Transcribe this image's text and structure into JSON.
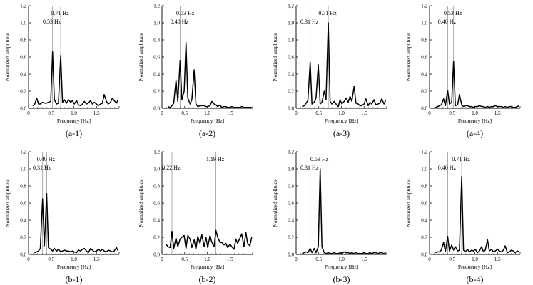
{
  "chart_data": [
    {
      "id": "a-1",
      "type": "line",
      "caption": "(a-1)",
      "xlabel": "Frequency [Hz]",
      "ylabel": "Normalized amplitude",
      "xlim": [
        0,
        2
      ],
      "ylim": [
        0,
        1.2
      ],
      "xticks": [
        "0",
        "0.5",
        "1.0",
        "1.5"
      ],
      "yticks": [
        "0.0",
        "0.2",
        "0.4",
        "0.6",
        "0.8",
        "1.0",
        "1.2"
      ],
      "peaks": [
        {
          "x": 0.53,
          "label": "0.53 Hz"
        },
        {
          "x": 0.71,
          "label": "0.71 Hz"
        }
      ],
      "x": [
        0.09,
        0.13,
        0.18,
        0.22,
        0.26,
        0.31,
        0.35,
        0.4,
        0.44,
        0.49,
        0.53,
        0.57,
        0.62,
        0.66,
        0.71,
        0.75,
        0.79,
        0.84,
        0.88,
        0.93,
        0.97,
        1.01,
        1.06,
        1.1,
        1.15,
        1.19,
        1.23,
        1.28,
        1.32,
        1.37,
        1.41,
        1.45,
        1.5,
        1.54,
        1.59,
        1.63,
        1.67,
        1.72,
        1.76,
        1.81,
        1.85,
        1.89,
        1.94,
        1.98
      ],
      "y": [
        0.03,
        0.04,
        0.12,
        0.05,
        0.05,
        0.07,
        0.06,
        0.06,
        0.07,
        0.08,
        0.66,
        0.1,
        0.05,
        0.06,
        0.62,
        0.07,
        0.1,
        0.06,
        0.1,
        0.07,
        0.09,
        0.05,
        0.09,
        0.04,
        0.03,
        0.05,
        0.08,
        0.05,
        0.06,
        0.09,
        0.05,
        0.07,
        0.05,
        0.03,
        0.05,
        0.06,
        0.16,
        0.08,
        0.05,
        0.07,
        0.12,
        0.09,
        0.06,
        0.1
      ]
    },
    {
      "id": "a-2",
      "type": "line",
      "caption": "(a-2)",
      "xlabel": "Frequency [Hz]",
      "ylabel": "Normalized amplitude",
      "xlim": [
        0,
        2
      ],
      "ylim": [
        0,
        1.2
      ],
      "xticks": [
        "0",
        "0.5",
        "1.0",
        "1.5"
      ],
      "yticks": [
        "0.0",
        "0.2",
        "0.4",
        "0.6",
        "0.8",
        "1.0",
        "1.2"
      ],
      "peaks": [
        {
          "x": 0.4,
          "label": "0.40 Hz"
        },
        {
          "x": 0.53,
          "label": "0.53 Hz"
        }
      ],
      "x": [
        0.13,
        0.18,
        0.22,
        0.26,
        0.31,
        0.35,
        0.4,
        0.44,
        0.49,
        0.53,
        0.57,
        0.62,
        0.66,
        0.71,
        0.75,
        0.79,
        0.84,
        0.88,
        0.93,
        0.97,
        1.01,
        1.06,
        1.1,
        1.15,
        1.19,
        1.23,
        1.28,
        1.32,
        1.37,
        1.41,
        1.45,
        1.5,
        1.54,
        1.59,
        1.63,
        1.67,
        1.72,
        1.76,
        1.81,
        1.85,
        1.89,
        1.94,
        1.98
      ],
      "y": [
        0.02,
        0.01,
        0.03,
        0.06,
        0.33,
        0.08,
        0.56,
        0.1,
        0.2,
        0.77,
        0.12,
        0.05,
        0.1,
        0.45,
        0.05,
        0.02,
        0.03,
        0.03,
        0.03,
        0.02,
        0.02,
        0.03,
        0.08,
        0.05,
        0.04,
        0.02,
        0.04,
        0.01,
        0.02,
        0.02,
        0.01,
        0.01,
        0.02,
        0.01,
        0.01,
        0.01,
        0.01,
        0.02,
        0.01,
        0.01,
        0.01,
        0.01,
        0.01
      ]
    },
    {
      "id": "a-3",
      "type": "line",
      "caption": "(a-3)",
      "xlabel": "Frequency [Hz]",
      "ylabel": "Normalized amplitude",
      "xlim": [
        0,
        2
      ],
      "ylim": [
        0,
        1.2
      ],
      "xticks": [
        "0",
        "0.5",
        "1.0",
        "1.5"
      ],
      "yticks": [
        "0.0",
        "0.2",
        "0.4",
        "0.6",
        "0.8",
        "1.0",
        "1.2"
      ],
      "peaks": [
        {
          "x": 0.31,
          "label": "0.31 Hz"
        },
        {
          "x": 0.71,
          "label": "0.71 Hz"
        }
      ],
      "x": [
        0.13,
        0.18,
        0.22,
        0.26,
        0.31,
        0.35,
        0.4,
        0.44,
        0.49,
        0.53,
        0.57,
        0.62,
        0.66,
        0.71,
        0.75,
        0.79,
        0.84,
        0.88,
        0.93,
        0.97,
        1.01,
        1.06,
        1.1,
        1.15,
        1.19,
        1.23,
        1.28,
        1.32,
        1.37,
        1.41,
        1.45,
        1.5,
        1.54,
        1.59,
        1.63,
        1.67,
        1.72,
        1.76,
        1.81,
        1.85,
        1.89,
        1.94,
        1.98
      ],
      "y": [
        0.02,
        0.03,
        0.06,
        0.09,
        0.54,
        0.05,
        0.07,
        0.12,
        0.51,
        0.05,
        0.07,
        0.2,
        0.1,
        1.0,
        0.08,
        0.05,
        0.08,
        0.05,
        0.02,
        0.1,
        0.05,
        0.08,
        0.12,
        0.07,
        0.14,
        0.08,
        0.26,
        0.06,
        0.05,
        0.03,
        0.03,
        0.05,
        0.11,
        0.03,
        0.07,
        0.05,
        0.1,
        0.04,
        0.05,
        0.06,
        0.11,
        0.05,
        0.1
      ]
    },
    {
      "id": "a-4",
      "type": "line",
      "caption": "(a-4)",
      "xlabel": "Frequency [Hz]",
      "ylabel": "Normalized amplitude",
      "xlim": [
        0,
        2
      ],
      "ylim": [
        0,
        1.2
      ],
      "xticks": [
        "0",
        "0.5",
        "1.0",
        "1.5"
      ],
      "yticks": [
        "0.0",
        "0.2",
        "0.4",
        "0.6",
        "0.8",
        "1.0",
        "1.2"
      ],
      "peaks": [
        {
          "x": 0.4,
          "label": "0.40 Hz"
        },
        {
          "x": 0.53,
          "label": "0.53 Hz"
        }
      ],
      "x": [
        0.13,
        0.18,
        0.22,
        0.26,
        0.31,
        0.35,
        0.4,
        0.44,
        0.49,
        0.53,
        0.57,
        0.62,
        0.66,
        0.71,
        0.75,
        0.79,
        0.84,
        0.88,
        0.93,
        0.97,
        1.01,
        1.06,
        1.1,
        1.15,
        1.19,
        1.23,
        1.28,
        1.32,
        1.37,
        1.41,
        1.45,
        1.5,
        1.54,
        1.59,
        1.63,
        1.67,
        1.72,
        1.76,
        1.81,
        1.85,
        1.89,
        1.94,
        1.98
      ],
      "y": [
        0.01,
        0.02,
        0.03,
        0.04,
        0.11,
        0.03,
        0.21,
        0.05,
        0.07,
        0.55,
        0.03,
        0.04,
        0.16,
        0.04,
        0.02,
        0.03,
        0.03,
        0.02,
        0.02,
        0.01,
        0.02,
        0.02,
        0.03,
        0.02,
        0.02,
        0.01,
        0.02,
        0.01,
        0.02,
        0.02,
        0.03,
        0.02,
        0.02,
        0.02,
        0.01,
        0.02,
        0.01,
        0.02,
        0.02,
        0.01,
        0.01,
        0.02,
        0.03
      ]
    },
    {
      "id": "b-1",
      "type": "line",
      "caption": "(b-1)",
      "xlabel": "Frequency [Hz]",
      "ylabel": "Normalized amplitude",
      "xlim": [
        0,
        2
      ],
      "ylim": [
        0,
        1.2
      ],
      "xticks": [
        "0",
        "0.5",
        "1.0",
        "1.5"
      ],
      "yticks": [
        "0.0",
        "0.2",
        "0.4",
        "0.6",
        "0.8",
        "1.0",
        "1.2"
      ],
      "peaks": [
        {
          "x": 0.31,
          "label": "0.31 Hz"
        },
        {
          "x": 0.4,
          "label": "0.40 Hz"
        }
      ],
      "x": [
        0.13,
        0.18,
        0.22,
        0.26,
        0.31,
        0.35,
        0.4,
        0.44,
        0.49,
        0.53,
        0.57,
        0.62,
        0.66,
        0.71,
        0.75,
        0.79,
        0.84,
        0.88,
        0.93,
        0.97,
        1.01,
        1.06,
        1.1,
        1.15,
        1.19,
        1.23,
        1.28,
        1.32,
        1.37,
        1.41,
        1.45,
        1.5,
        1.54,
        1.59,
        1.63,
        1.67,
        1.72,
        1.76,
        1.81,
        1.85,
        1.89,
        1.94,
        1.98
      ],
      "y": [
        0.02,
        0.03,
        0.04,
        0.07,
        0.65,
        0.1,
        0.71,
        0.08,
        0.06,
        0.04,
        0.07,
        0.04,
        0.06,
        0.03,
        0.04,
        0.05,
        0.04,
        0.04,
        0.03,
        0.04,
        0.03,
        0.02,
        0.05,
        0.04,
        0.06,
        0.07,
        0.04,
        0.02,
        0.07,
        0.05,
        0.03,
        0.04,
        0.06,
        0.04,
        0.06,
        0.04,
        0.03,
        0.05,
        0.04,
        0.03,
        0.04,
        0.08,
        0.04
      ]
    },
    {
      "id": "b-2",
      "type": "line",
      "caption": "(b-2)",
      "xlabel": "Frequency [Hz]",
      "ylabel": "Normalized amplitude",
      "xlim": [
        0,
        2
      ],
      "ylim": [
        0,
        1.2
      ],
      "xticks": [
        "0",
        "0.5",
        "1.0",
        "1.5"
      ],
      "yticks": [
        "0.0",
        "0.2",
        "0.4",
        "0.6",
        "0.8",
        "1.0",
        "1.2"
      ],
      "peaks": [
        {
          "x": 0.22,
          "label": "0.22 Hz"
        },
        {
          "x": 1.19,
          "label": "1.19 Hz"
        }
      ],
      "x": [
        0.09,
        0.13,
        0.18,
        0.22,
        0.26,
        0.31,
        0.35,
        0.4,
        0.44,
        0.49,
        0.53,
        0.57,
        0.62,
        0.66,
        0.71,
        0.75,
        0.79,
        0.84,
        0.88,
        0.93,
        0.97,
        1.01,
        1.06,
        1.1,
        1.15,
        1.19,
        1.23,
        1.28,
        1.32,
        1.37,
        1.41,
        1.45,
        1.5,
        1.54,
        1.59,
        1.63,
        1.67,
        1.72,
        1.76,
        1.81,
        1.85,
        1.89,
        1.94,
        1.98
      ],
      "y": [
        0.12,
        0.09,
        0.08,
        0.27,
        0.07,
        0.19,
        0.09,
        0.18,
        0.2,
        0.22,
        0.07,
        0.22,
        0.18,
        0.08,
        0.17,
        0.06,
        0.21,
        0.13,
        0.23,
        0.09,
        0.2,
        0.08,
        0.22,
        0.14,
        0.09,
        0.28,
        0.2,
        0.14,
        0.14,
        0.11,
        0.13,
        0.08,
        0.12,
        0.09,
        0.06,
        0.18,
        0.13,
        0.19,
        0.24,
        0.09,
        0.26,
        0.13,
        0.1,
        0.2
      ]
    },
    {
      "id": "b-3",
      "type": "line",
      "caption": "(b-3)",
      "xlabel": "Frequency [Hz]",
      "ylabel": "Normalized amplitude",
      "xlim": [
        0,
        2
      ],
      "ylim": [
        0,
        1.2
      ],
      "xticks": [
        "0",
        "0.5",
        "1.0",
        "1.5"
      ],
      "yticks": [
        "0.0",
        "0.2",
        "0.4",
        "0.6",
        "0.8",
        "1.0",
        "1.2"
      ],
      "peaks": [
        {
          "x": 0.31,
          "label": "0.31 Hz"
        },
        {
          "x": 0.53,
          "label": "0.53 Hz"
        }
      ],
      "x": [
        0.13,
        0.18,
        0.22,
        0.26,
        0.31,
        0.35,
        0.4,
        0.44,
        0.49,
        0.53,
        0.57,
        0.62,
        0.66,
        0.71,
        0.75,
        0.79,
        0.84,
        0.88,
        0.93,
        0.97,
        1.01,
        1.06,
        1.1,
        1.15,
        1.19,
        1.23,
        1.28,
        1.32,
        1.37,
        1.41,
        1.45,
        1.5,
        1.54,
        1.59,
        1.63,
        1.67,
        1.72,
        1.76,
        1.81,
        1.85,
        1.89,
        1.94,
        1.98
      ],
      "y": [
        0.01,
        0.02,
        0.03,
        0.02,
        0.07,
        0.02,
        0.07,
        0.02,
        0.09,
        1.0,
        0.09,
        0.02,
        0.01,
        0.02,
        0.01,
        0.01,
        0.02,
        0.01,
        0.01,
        0.02,
        0.01,
        0.03,
        0.02,
        0.02,
        0.01,
        0.02,
        0.01,
        0.02,
        0.01,
        0.01,
        0.01,
        0.02,
        0.01,
        0.01,
        0.02,
        0.01,
        0.02,
        0.02,
        0.01,
        0.02,
        0.02,
        0.01,
        0.02
      ]
    },
    {
      "id": "b-4",
      "type": "line",
      "caption": "(b-4)",
      "xlabel": "Frequency [Hz]",
      "ylabel": "Normalized amplitude",
      "xlim": [
        0,
        2
      ],
      "ylim": [
        0,
        1.2
      ],
      "xticks": [
        "0",
        "0.5",
        "1.0",
        "1.5"
      ],
      "yticks": [
        "0.0",
        "0.2",
        "0.4",
        "0.6",
        "0.8",
        "1.0",
        "1.2"
      ],
      "peaks": [
        {
          "x": 0.4,
          "label": "0.40 Hz"
        },
        {
          "x": 0.71,
          "label": "0.71 Hz"
        }
      ],
      "x": [
        0.13,
        0.18,
        0.22,
        0.26,
        0.31,
        0.35,
        0.4,
        0.44,
        0.49,
        0.53,
        0.57,
        0.62,
        0.66,
        0.71,
        0.75,
        0.79,
        0.84,
        0.88,
        0.93,
        0.97,
        1.01,
        1.06,
        1.1,
        1.15,
        1.19,
        1.23,
        1.28,
        1.32,
        1.37,
        1.41,
        1.45,
        1.5,
        1.54,
        1.59,
        1.63,
        1.67,
        1.72,
        1.76,
        1.81,
        1.85,
        1.89,
        1.94,
        1.98
      ],
      "y": [
        0.02,
        0.03,
        0.03,
        0.05,
        0.14,
        0.03,
        0.21,
        0.04,
        0.11,
        0.05,
        0.09,
        0.04,
        0.05,
        0.91,
        0.05,
        0.03,
        0.06,
        0.03,
        0.05,
        0.04,
        0.06,
        0.02,
        0.04,
        0.09,
        0.03,
        0.05,
        0.17,
        0.04,
        0.06,
        0.03,
        0.04,
        0.06,
        0.04,
        0.03,
        0.05,
        0.1,
        0.02,
        0.03,
        0.05,
        0.04,
        0.02,
        0.04,
        0.03
      ]
    }
  ]
}
